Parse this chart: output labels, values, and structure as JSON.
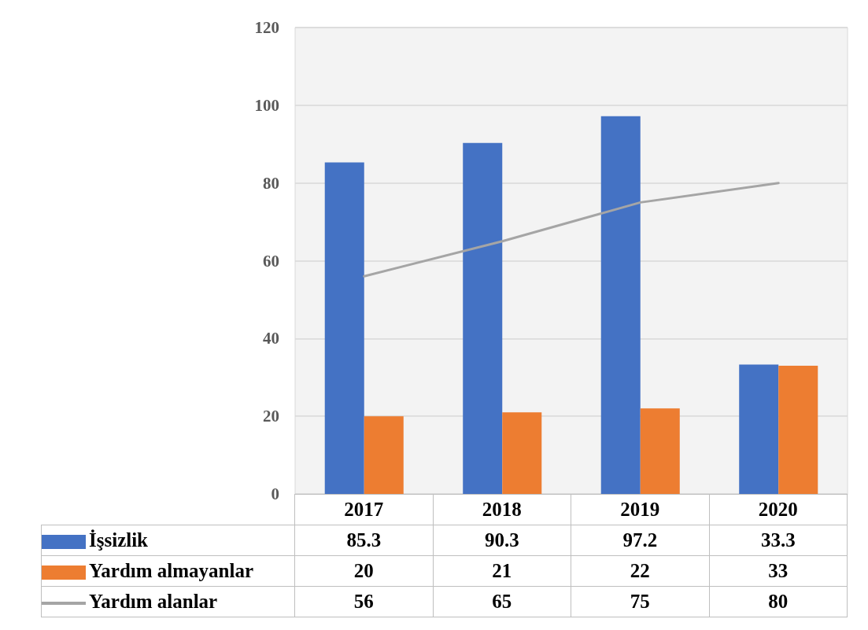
{
  "chart_data": {
    "type": "bar",
    "categories": [
      "2017",
      "2018",
      "2019",
      "2020"
    ],
    "series": [
      {
        "name": "İşsizlik",
        "color": "#4472c4",
        "values": [
          85.3,
          90.3,
          97.2,
          33.3
        ]
      },
      {
        "name": "Yardım almayanlar",
        "color": "#ed7d31",
        "values": [
          20,
          21,
          22,
          33
        ]
      },
      {
        "name": "Yardım alanlar",
        "type": "line",
        "color": "#a5a5a5",
        "values": [
          56,
          65,
          75,
          80
        ]
      }
    ],
    "ylim": [
      0,
      120
    ],
    "yticks": [
      0,
      20,
      40,
      60,
      80,
      100,
      120
    ],
    "grid": "y",
    "legend": "bottom",
    "data_labels": true,
    "marker": "none"
  }
}
